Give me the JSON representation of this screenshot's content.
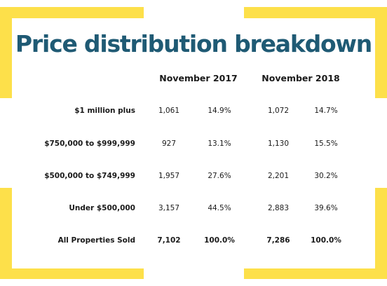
{
  "title": "Price distribution breakdown",
  "colors": {
    "accent": "#fde04a",
    "title": "#1f5a74",
    "text": "#1a1a1a"
  },
  "chart_data": {
    "type": "table",
    "title": "Price distribution breakdown",
    "periods": [
      "November 2017",
      "November 2018"
    ],
    "rows": [
      {
        "label": "$1 million plus",
        "values": [
          "1,061",
          "14.9%",
          "1,072",
          "14.7%"
        ]
      },
      {
        "label": "$750,000 to $999,999",
        "values": [
          "927",
          "13.1%",
          "1,130",
          "15.5%"
        ]
      },
      {
        "label": "$500,000 to $749,999",
        "values": [
          "1,957",
          "27.6%",
          "2,201",
          "30.2%"
        ]
      },
      {
        "label": "Under $500,000",
        "values": [
          "3,157",
          "44.5%",
          "2,883",
          "39.6%"
        ]
      },
      {
        "label": "All Properties Sold",
        "values": [
          "7,102",
          "100.0%",
          "7,286",
          "100.0%"
        ]
      }
    ]
  }
}
